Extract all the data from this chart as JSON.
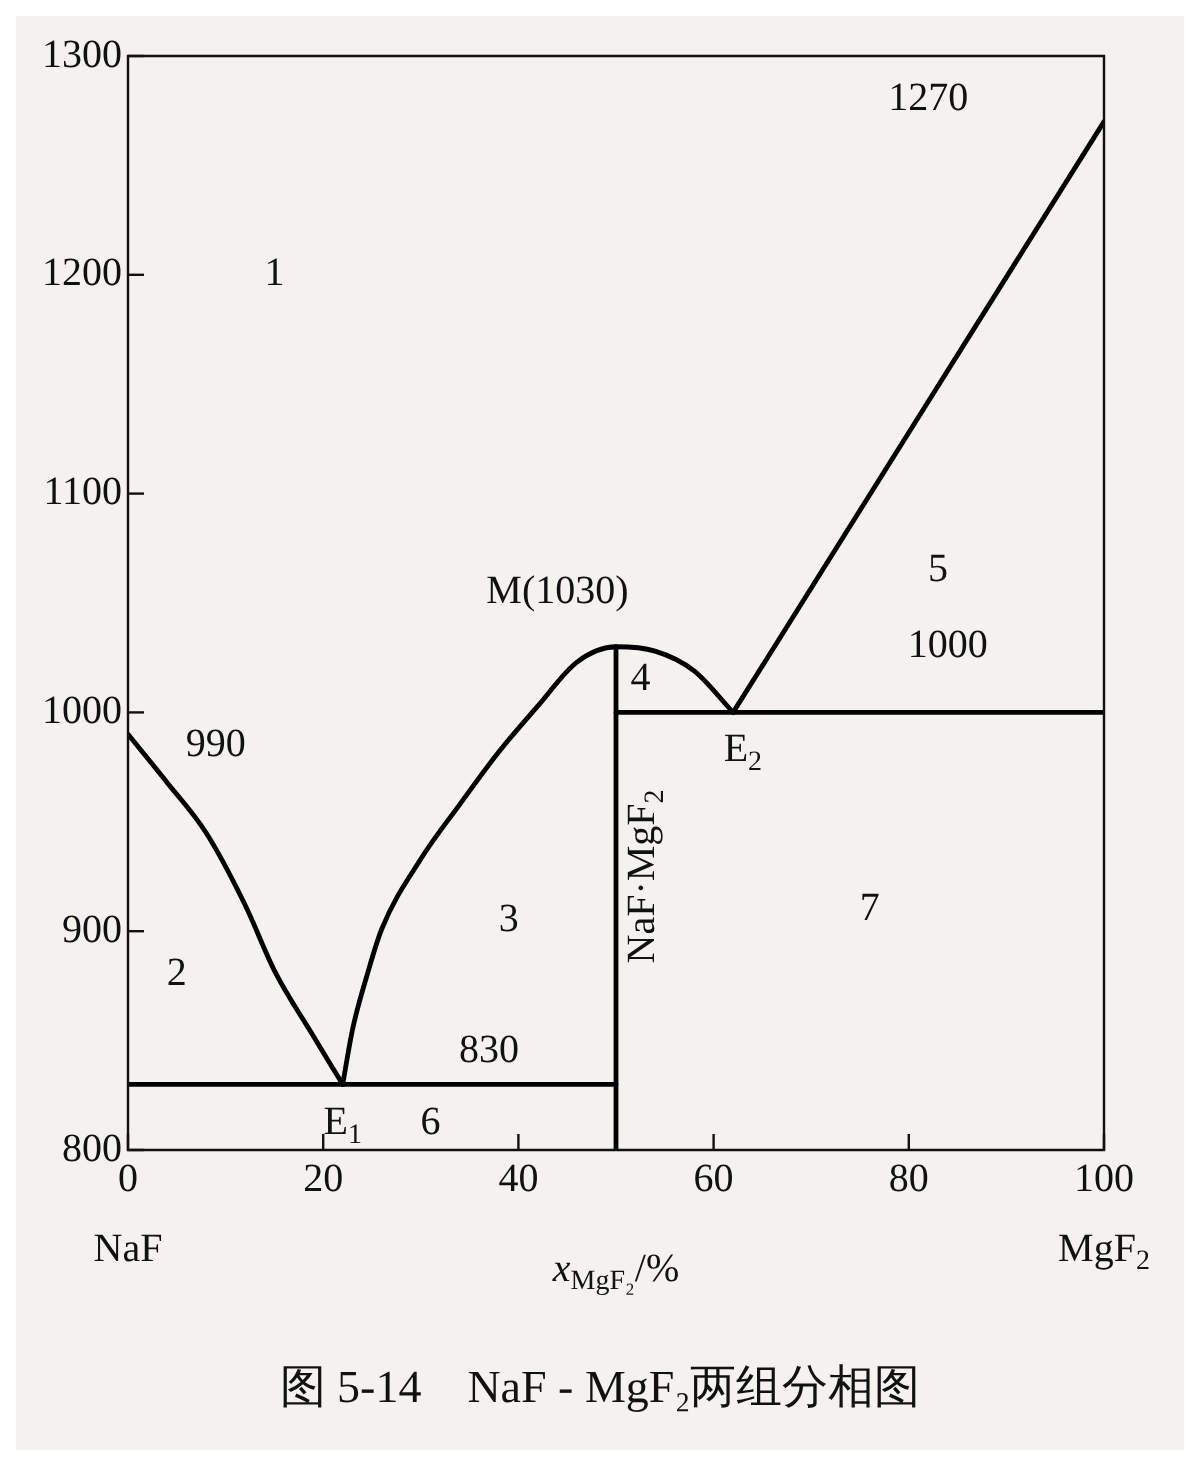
{
  "chart_data": {
    "type": "line",
    "title": "图 5-14　NaF - MgF₂两组分相图",
    "xlabel": "x$_{MgF₂}$/%",
    "xlim": [
      0,
      100
    ],
    "ylim": [
      800,
      1300
    ],
    "xticks": [
      0,
      20,
      40,
      60,
      80,
      100
    ],
    "yticks": [
      800,
      900,
      1000,
      1100,
      1200,
      1300
    ],
    "grid": false,
    "legend": false,
    "marker": "none",
    "line_style": "solid",
    "series": [
      {
        "color": "#000000",
        "x": [
          0,
          4,
          8,
          12,
          15,
          19,
          22
        ],
        "values": [
          990,
          968,
          945,
          912,
          882,
          852,
          830
        ]
      },
      {
        "color": "#000000",
        "x": [
          22,
          23,
          24.5,
          26,
          30,
          34,
          38,
          42,
          46,
          50,
          54,
          58,
          62
        ],
        "values": [
          830,
          855,
          880,
          901,
          933,
          958,
          982,
          1003,
          1023,
          1030,
          1028,
          1019,
          1000
        ]
      },
      {
        "color": "#000000",
        "x": [
          62,
          100
        ],
        "values": [
          1000,
          1270
        ]
      },
      {
        "color": "#000000",
        "x": [
          0,
          50
        ],
        "values": [
          830,
          830
        ]
      },
      {
        "color": "#000000",
        "x": [
          50,
          50
        ],
        "values": [
          800,
          1030
        ]
      },
      {
        "color": "#000000",
        "x": [
          50,
          100
        ],
        "values": [
          1000,
          1000
        ]
      }
    ],
    "annotations": [
      "1",
      "2",
      "3",
      "4",
      "5",
      "6",
      "7",
      "990",
      "830",
      "1000",
      "1270",
      "M(1030)",
      "E$_{1}$",
      "E$_{2}$",
      "NaF·MgF$_{2}$",
      "NaF",
      "MgF$_{2}$"
    ]
  }
}
